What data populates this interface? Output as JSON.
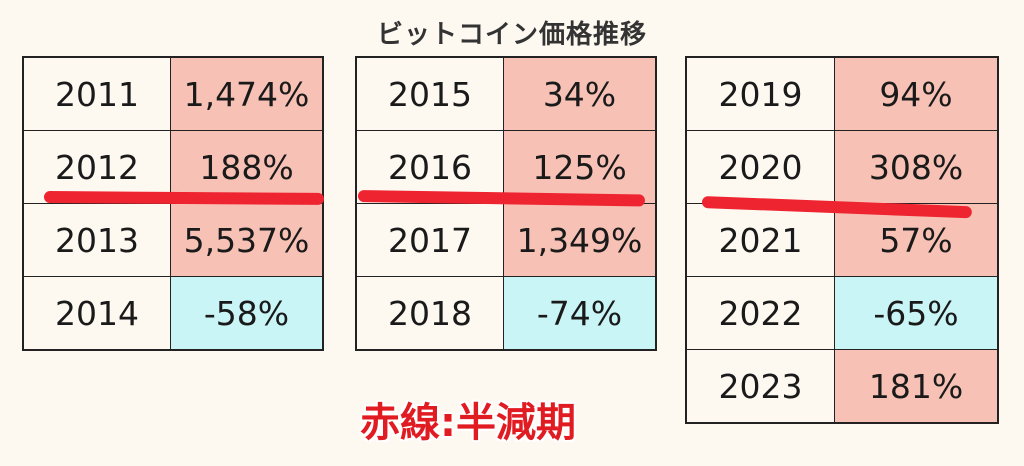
{
  "title": "ビットコイン価格推移",
  "legend": "赤線:半減期",
  "colors": {
    "positive": "#f7c2b5",
    "negative": "#c9f5f7",
    "halving_line": "#ee2430"
  },
  "tables": [
    {
      "rows": [
        {
          "year": "2011",
          "value": "1,474%",
          "sign": "positive"
        },
        {
          "year": "2012",
          "value": "188%",
          "sign": "positive"
        },
        {
          "year": "2013",
          "value": "5,537%",
          "sign": "positive"
        },
        {
          "year": "2014",
          "value": "-58%",
          "sign": "negative"
        }
      ]
    },
    {
      "rows": [
        {
          "year": "2015",
          "value": "34%",
          "sign": "positive"
        },
        {
          "year": "2016",
          "value": "125%",
          "sign": "positive"
        },
        {
          "year": "2017",
          "value": "1,349%",
          "sign": "positive"
        },
        {
          "year": "2018",
          "value": "-74%",
          "sign": "negative"
        }
      ]
    },
    {
      "rows": [
        {
          "year": "2019",
          "value": "94%",
          "sign": "positive"
        },
        {
          "year": "2020",
          "value": "308%",
          "sign": "positive"
        },
        {
          "year": "2021",
          "value": "57%",
          "sign": "positive"
        },
        {
          "year": "2022",
          "value": "-65%",
          "sign": "negative"
        },
        {
          "year": "2023",
          "value": "181%",
          "sign": "positive"
        }
      ]
    }
  ]
}
